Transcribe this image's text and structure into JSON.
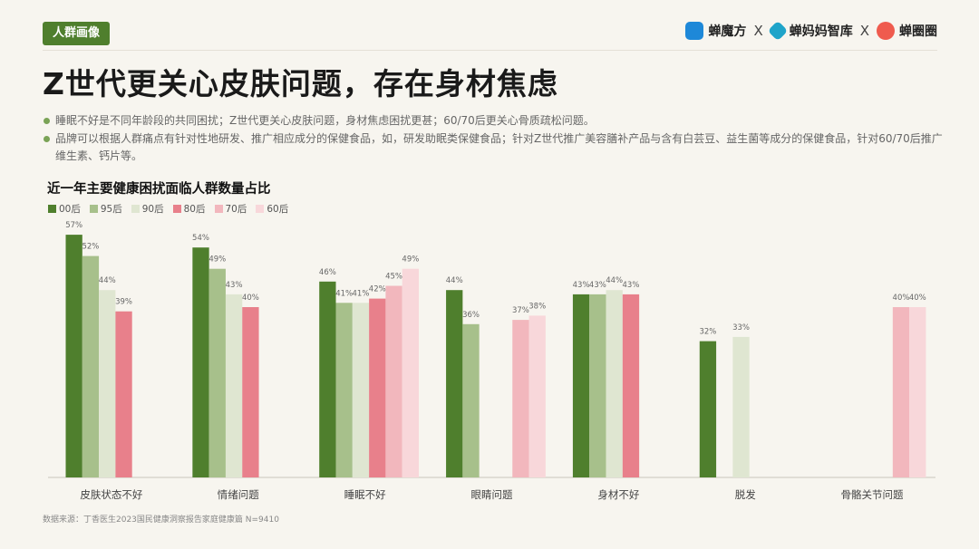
{
  "header": {
    "tag": "人群画像",
    "brands": [
      {
        "name": "蝉魔方",
        "icon": "cube-logo-icon"
      },
      {
        "name": "蝉妈妈智库",
        "icon": "diamond-logo-icon"
      },
      {
        "name": "蝉圈圈",
        "icon": "circle-logo-icon"
      }
    ],
    "separator": "X"
  },
  "title": "Z世代更关心皮肤问题，存在身材焦虑",
  "bullets": [
    "睡眠不好是不同年龄段的共同困扰；Z世代更关心皮肤问题，身材焦虑困扰更甚；60/70后更关心骨质疏松问题。",
    "品牌可以根据人群痛点有针对性地研发、推广相应成分的保健食品，如，研发助眠类保健食品；针对Z世代推广美容膳补产品与含有白芸豆、益生菌等成分的保健食品，针对60/70后推广维生素、钙片等。"
  ],
  "source": "数据来源：丁香医生2023国民健康洞察报告家庭健康篇 N=9410",
  "chart_data": {
    "type": "bar",
    "title": "近一年主要健康困扰面临人群数量占比",
    "categories": [
      "皮肤状态不好",
      "情绪问题",
      "睡眠不好",
      "眼睛问题",
      "身材不好",
      "脱发",
      "骨骼关节问题"
    ],
    "series": [
      {
        "name": "00后",
        "color": "#4f7f2d",
        "values": [
          57,
          54,
          46,
          44,
          43,
          32,
          null
        ]
      },
      {
        "name": "95后",
        "color": "#a7c08b",
        "values": [
          52,
          49,
          41,
          36,
          43,
          null,
          null
        ]
      },
      {
        "name": "90后",
        "color": "#dfe6d1",
        "values": [
          44,
          43,
          41,
          null,
          44,
          33,
          null
        ]
      },
      {
        "name": "80后",
        "color": "#e8808b",
        "values": [
          39,
          40,
          42,
          null,
          43,
          null,
          null
        ]
      },
      {
        "name": "70后",
        "color": "#f2b7bd",
        "values": [
          null,
          null,
          45,
          37,
          null,
          null,
          40
        ]
      },
      {
        "name": "60后",
        "color": "#f8d7da",
        "values": [
          null,
          null,
          49,
          38,
          null,
          null,
          40
        ]
      }
    ],
    "value_suffix": "%",
    "ylim": [
      0,
      60
    ],
    "grid": false,
    "legend": "top-left"
  }
}
